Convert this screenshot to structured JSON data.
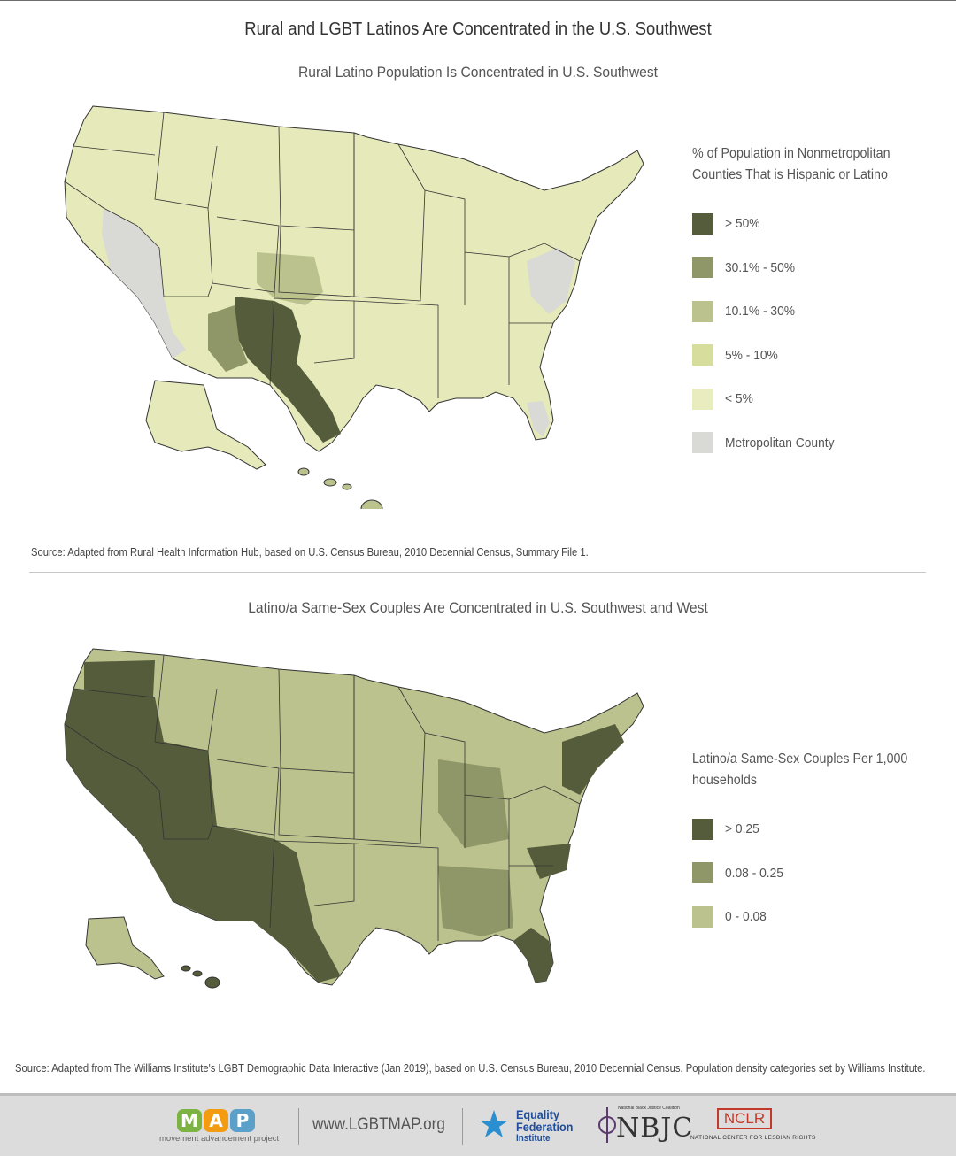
{
  "title": "Rural and LGBT Latinos Are Concentrated in the U.S. Southwest",
  "section1": {
    "subtitle": "Rural Latino Population Is Concentrated in U.S. Southwest",
    "legend_title": "% of Population in Nonmetropolitan Counties That is Hispanic or Latino",
    "legend": [
      {
        "label": "> 50%",
        "color": "#545c3c"
      },
      {
        "label": "30.1% - 50%",
        "color": "#8f9668"
      },
      {
        "label": "10.1% - 30%",
        "color": "#bcc28e"
      },
      {
        "label": "5% - 10%",
        "color": "#d7de9d"
      },
      {
        "label": "< 5%",
        "color": "#e9ecbf"
      },
      {
        "label": "Metropolitan County",
        "color": "#d9d9d6"
      }
    ],
    "source": "Source: Adapted from Rural Health Information Hub, based on U.S. Census Bureau, 2010 Decennial Census, Summary File 1."
  },
  "section2": {
    "subtitle": "Latino/a Same-Sex Couples Are Concentrated in U.S. Southwest and West",
    "legend_title": "Latino/a Same-Sex Couples Per 1,000 households",
    "legend": [
      {
        "label": "> 0.25",
        "color": "#545c3c"
      },
      {
        "label": "0.08 - 0.25",
        "color": "#8f9668"
      },
      {
        "label": "0 - 0.08",
        "color": "#bcc28e"
      }
    ],
    "source": "Source: Adapted from The Williams Institute's LGBT Demographic Data Interactive (Jan 2019), based on U.S. Census Bureau, 2010 Decennial Census. Population density categories set by Williams Institute."
  },
  "footer": {
    "map_letters": [
      "M",
      "A",
      "P"
    ],
    "map_letter_colors": [
      "#7cb342",
      "#f39c12",
      "#5aa0c8"
    ],
    "map_subtitle": "movement advancement project",
    "website": "www.LGBTMAP.org",
    "efi_lines": [
      "Equality",
      "Federation",
      "Institute"
    ],
    "nbjc_small": "National Black Justice Coalition",
    "nbjc": "NBJC",
    "nclr": "NCLR",
    "nclr_sub": "NATIONAL CENTER FOR LESBIAN RIGHTS"
  }
}
